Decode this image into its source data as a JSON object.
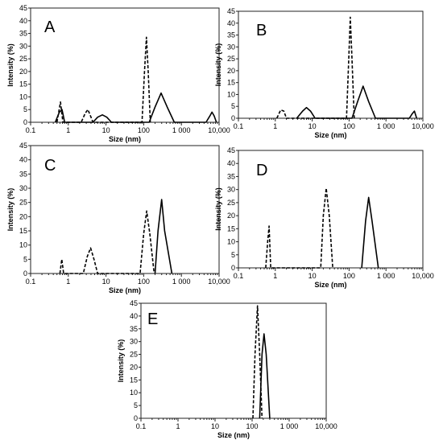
{
  "chart_data": [
    {
      "type": "line",
      "panel_label": "A",
      "xlabel": "Size (nm)",
      "ylabel": "Intensity (%)",
      "x_scale": "log",
      "xlim": [
        0.1,
        10000
      ],
      "ylim": [
        0,
        45
      ],
      "x_tick_labels": [
        "0.1",
        "1",
        "10",
        "100",
        "1 000",
        "10,000"
      ],
      "y_ticks": [
        0,
        5,
        10,
        15,
        20,
        25,
        30,
        35,
        40,
        45
      ],
      "grid": false,
      "line_styles": [
        "solid",
        "dashed"
      ],
      "series": [
        {
          "style": "solid",
          "points": [
            [
              0.45,
              0
            ],
            [
              0.58,
              4
            ],
            [
              0.68,
              5
            ],
            [
              0.8,
              0
            ],
            [
              4.5,
              0
            ],
            [
              6,
              2
            ],
            [
              8,
              2.9
            ],
            [
              10.5,
              2
            ],
            [
              14,
              0
            ],
            [
              140,
              0
            ],
            [
              200,
              6
            ],
            [
              290,
              11.5
            ],
            [
              420,
              6
            ],
            [
              650,
              0
            ],
            [
              4500,
              0
            ],
            [
              5700,
              2.5
            ],
            [
              6500,
              4
            ],
            [
              7400,
              2.5
            ],
            [
              8500,
              0
            ]
          ]
        },
        {
          "style": "dashed",
          "points": [
            [
              0.5,
              0
            ],
            [
              0.62,
              8
            ],
            [
              0.72,
              0
            ],
            [
              2.2,
              0
            ],
            [
              2.8,
              3.5
            ],
            [
              3.3,
              5
            ],
            [
              4,
              2
            ],
            [
              4.5,
              0
            ],
            [
              90,
              0
            ],
            [
              105,
              20
            ],
            [
              118,
              33.5
            ],
            [
              132,
              20
            ],
            [
              150,
              0
            ]
          ]
        }
      ]
    },
    {
      "type": "line",
      "panel_label": "B",
      "xlabel": "Size (nm)",
      "ylabel": "Intensity (%)",
      "x_scale": "log",
      "xlim": [
        0.1,
        10000
      ],
      "ylim": [
        0,
        45
      ],
      "x_tick_labels": [
        "0.1",
        "1",
        "10",
        "100",
        "1 000",
        "10,000"
      ],
      "y_ticks": [
        0,
        5,
        10,
        15,
        20,
        25,
        30,
        35,
        40,
        45
      ],
      "grid": false,
      "line_styles": [
        "solid",
        "dashed"
      ],
      "series": [
        {
          "style": "solid",
          "points": [
            [
              3.8,
              0
            ],
            [
              5.5,
              3
            ],
            [
              7,
              4.5
            ],
            [
              9,
              3
            ],
            [
              12,
              0
            ],
            [
              120,
              0
            ],
            [
              170,
              7
            ],
            [
              240,
              13.5
            ],
            [
              340,
              7
            ],
            [
              520,
              0
            ],
            [
              4300,
              0
            ],
            [
              5200,
              2
            ],
            [
              5900,
              3
            ],
            [
              6800,
              0
            ]
          ]
        },
        {
          "style": "dashed",
          "points": [
            [
              1.1,
              0
            ],
            [
              1.4,
              3.5
            ],
            [
              1.7,
              3
            ],
            [
              2,
              0
            ],
            [
              85,
              0
            ],
            [
              98,
              25
            ],
            [
              108,
              42.5
            ],
            [
              120,
              25
            ],
            [
              138,
              0
            ]
          ]
        }
      ]
    },
    {
      "type": "line",
      "panel_label": "C",
      "xlabel": "Size (nm)",
      "ylabel": "Intensity (%)",
      "x_scale": "log",
      "xlim": [
        0.1,
        10000
      ],
      "ylim": [
        0,
        45
      ],
      "x_tick_labels": [
        "0.1",
        "1",
        "10",
        "100",
        "1 000",
        "10,000"
      ],
      "y_ticks": [
        0,
        5,
        10,
        15,
        20,
        25,
        30,
        35,
        40,
        45
      ],
      "grid": false,
      "line_styles": [
        "solid",
        "dashed"
      ],
      "series": [
        {
          "style": "solid",
          "points": [
            [
              200,
              0
            ],
            [
              240,
              15
            ],
            [
              300,
              26
            ],
            [
              360,
              15
            ],
            [
              560,
              0
            ]
          ]
        },
        {
          "style": "dashed",
          "points": [
            [
              0.6,
              0
            ],
            [
              0.67,
              5
            ],
            [
              0.75,
              0
            ],
            [
              2.5,
              0
            ],
            [
              3.2,
              6
            ],
            [
              3.9,
              9
            ],
            [
              4.8,
              5
            ],
            [
              6,
              0
            ],
            [
              80,
              0
            ],
            [
              100,
              14
            ],
            [
              120,
              22
            ],
            [
              145,
              14
            ],
            [
              190,
              0
            ]
          ]
        }
      ]
    },
    {
      "type": "line",
      "panel_label": "D",
      "xlabel": "Size (nm)",
      "ylabel": "Intensity (%)",
      "x_scale": "log",
      "xlim": [
        0.1,
        10000
      ],
      "ylim": [
        0,
        45
      ],
      "x_tick_labels": [
        "0.1",
        "1",
        "10",
        "100",
        "1 000",
        "10,000"
      ],
      "y_ticks": [
        0,
        5,
        10,
        15,
        20,
        25,
        30,
        35,
        40,
        45
      ],
      "grid": false,
      "line_styles": [
        "solid",
        "dashed"
      ],
      "series": [
        {
          "style": "solid",
          "points": [
            [
              220,
              0
            ],
            [
              280,
              18
            ],
            [
              340,
              27
            ],
            [
              420,
              18
            ],
            [
              620,
              0
            ]
          ]
        },
        {
          "style": "dashed",
          "points": [
            [
              0.55,
              0
            ],
            [
              0.62,
              10
            ],
            [
              0.68,
              16
            ],
            [
              0.75,
              0
            ],
            [
              17,
              0
            ],
            [
              20,
              20
            ],
            [
              24,
              30.5
            ],
            [
              29,
              20
            ],
            [
              36,
              0
            ]
          ]
        }
      ]
    },
    {
      "type": "line",
      "panel_label": "E",
      "xlabel": "Size (nm)",
      "ylabel": "Intensity (%)",
      "x_scale": "log",
      "xlim": [
        0.1,
        10000
      ],
      "ylim": [
        0,
        45
      ],
      "x_tick_labels": [
        "0.1",
        "1",
        "10",
        "100",
        "1 000",
        "10,000"
      ],
      "y_ticks": [
        0,
        5,
        10,
        15,
        20,
        25,
        30,
        35,
        40,
        45
      ],
      "grid": false,
      "line_styles": [
        "solid",
        "dashed"
      ],
      "series": [
        {
          "style": "solid",
          "points": [
            [
              160,
              0
            ],
            [
              185,
              25
            ],
            [
              210,
              33
            ],
            [
              240,
              25
            ],
            [
              300,
              0
            ]
          ]
        },
        {
          "style": "dashed",
          "points": [
            [
              105,
              0
            ],
            [
              120,
              25
            ],
            [
              140,
              44
            ],
            [
              160,
              25
            ],
            [
              185,
              0
            ]
          ]
        }
      ]
    }
  ]
}
